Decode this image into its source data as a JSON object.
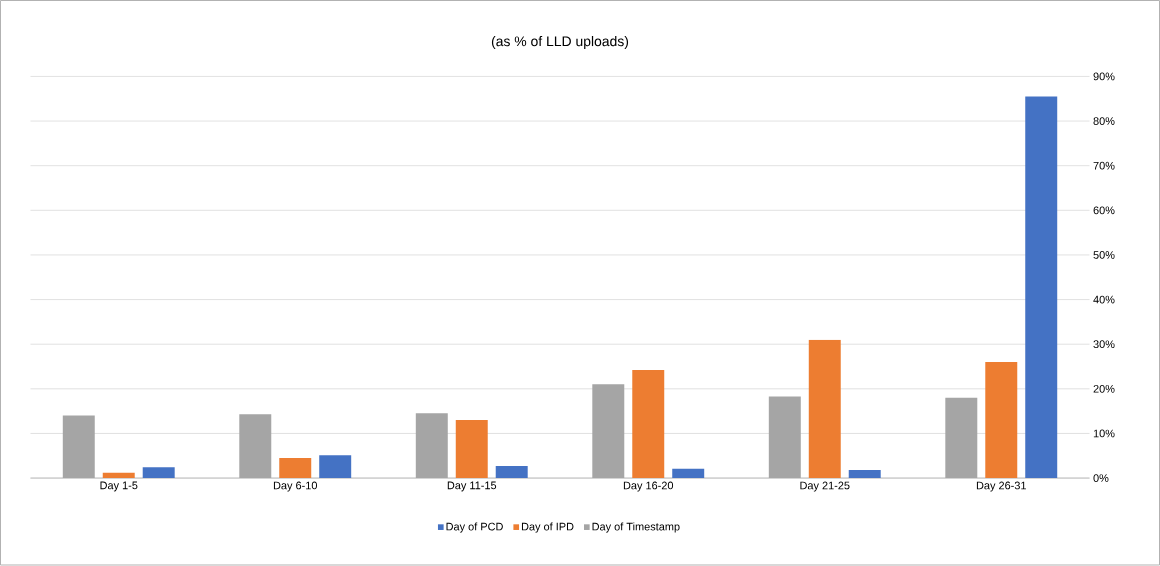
{
  "chart_data": {
    "type": "bar",
    "title": "(as % of  LLD uploads)",
    "categories": [
      "Day 1-5",
      "Day 6-10",
      "Day 11-15",
      "Day 16-20",
      "Day 21-25",
      "Day 26-31"
    ],
    "series": [
      {
        "name": "Day of Timestamp",
        "color": "#a5a5a5",
        "values": [
          14,
          14.3,
          14.5,
          21,
          18.3,
          18
        ]
      },
      {
        "name": "Day of IPD",
        "color": "#ed7d31",
        "values": [
          1.2,
          4.5,
          13,
          24.2,
          31,
          26
        ]
      },
      {
        "name": "Day of PCD",
        "color": "#4472c4",
        "values": [
          2.4,
          5.1,
          2.7,
          2.1,
          1.8,
          85.5
        ]
      }
    ],
    "ylim": [
      0,
      90
    ],
    "yticks": [
      {
        "value": 0,
        "label": "0%"
      },
      {
        "value": 10,
        "label": "10%"
      },
      {
        "value": 20,
        "label": "20%"
      },
      {
        "value": 30,
        "label": "30%"
      },
      {
        "value": 40,
        "label": "40%"
      },
      {
        "value": 50,
        "label": "50%"
      },
      {
        "value": 60,
        "label": "60%"
      },
      {
        "value": 70,
        "label": "70%"
      },
      {
        "value": 80,
        "label": "80%"
      },
      {
        "value": 90,
        "label": "90%"
      }
    ],
    "grid": "y",
    "legend": "bottom"
  }
}
